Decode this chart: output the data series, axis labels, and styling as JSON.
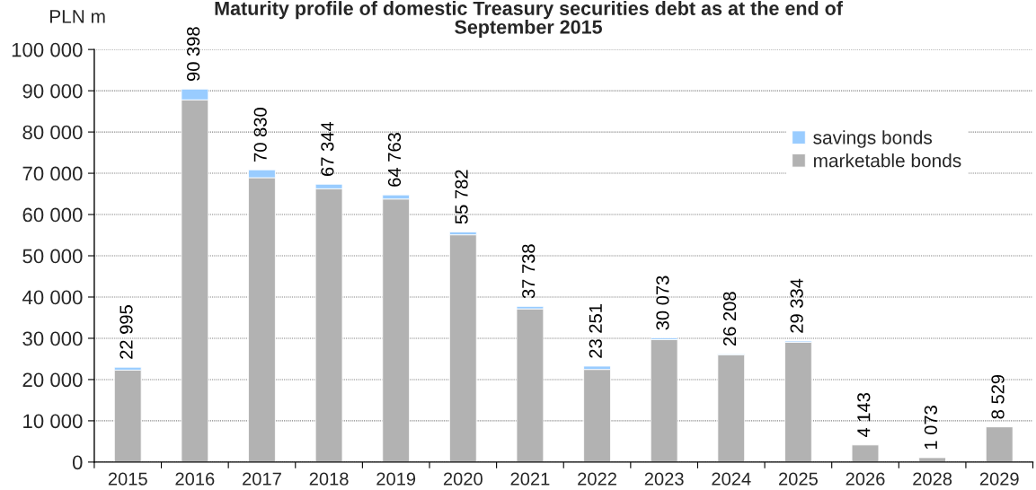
{
  "chart_data": {
    "type": "bar",
    "title": "Maturity profile of domestic Treasury securities debt as at the end of\nSeptember 2015",
    "ylabel": "PLN m",
    "categories": [
      "2015",
      "2016",
      "2017",
      "2018",
      "2019",
      "2020",
      "2021",
      "2022",
      "2023",
      "2024",
      "2025",
      "2026",
      "2028",
      "2029"
    ],
    "series": [
      {
        "name": "marketable bonds",
        "color": "#b2b2b2",
        "values": [
          22295,
          87798,
          68930,
          66244,
          63763,
          55082,
          37138,
          22451,
          29673,
          26008,
          29034,
          4143,
          1073,
          8529
        ]
      },
      {
        "name": "savings bonds",
        "color": "#99ccff",
        "values": [
          700,
          2600,
          1900,
          1100,
          1000,
          700,
          600,
          800,
          400,
          200,
          300,
          null,
          null,
          null
        ]
      }
    ],
    "stacked": true,
    "totals": [
      "22 995",
      "90 398",
      "70 830",
      "67 344",
      "64 763",
      "55 782",
      "37 738",
      "23 251",
      "30 073",
      "26 208",
      "29 334",
      "4 143",
      "1 073",
      "8 529"
    ],
    "ylim": [
      0,
      100000
    ],
    "yticks": [
      {
        "value": 0,
        "label": "0"
      },
      {
        "value": 10000,
        "label": "10 000"
      },
      {
        "value": 20000,
        "label": "20 000"
      },
      {
        "value": 30000,
        "label": "30 000"
      },
      {
        "value": 40000,
        "label": "40 000"
      },
      {
        "value": 50000,
        "label": "50 000"
      },
      {
        "value": 60000,
        "label": "60 000"
      },
      {
        "value": 70000,
        "label": "70 000"
      },
      {
        "value": 80000,
        "label": "80 000"
      },
      {
        "value": 90000,
        "label": "90 000"
      },
      {
        "value": 100000,
        "label": "100 000"
      }
    ],
    "grid": "y",
    "legend": "top right"
  }
}
